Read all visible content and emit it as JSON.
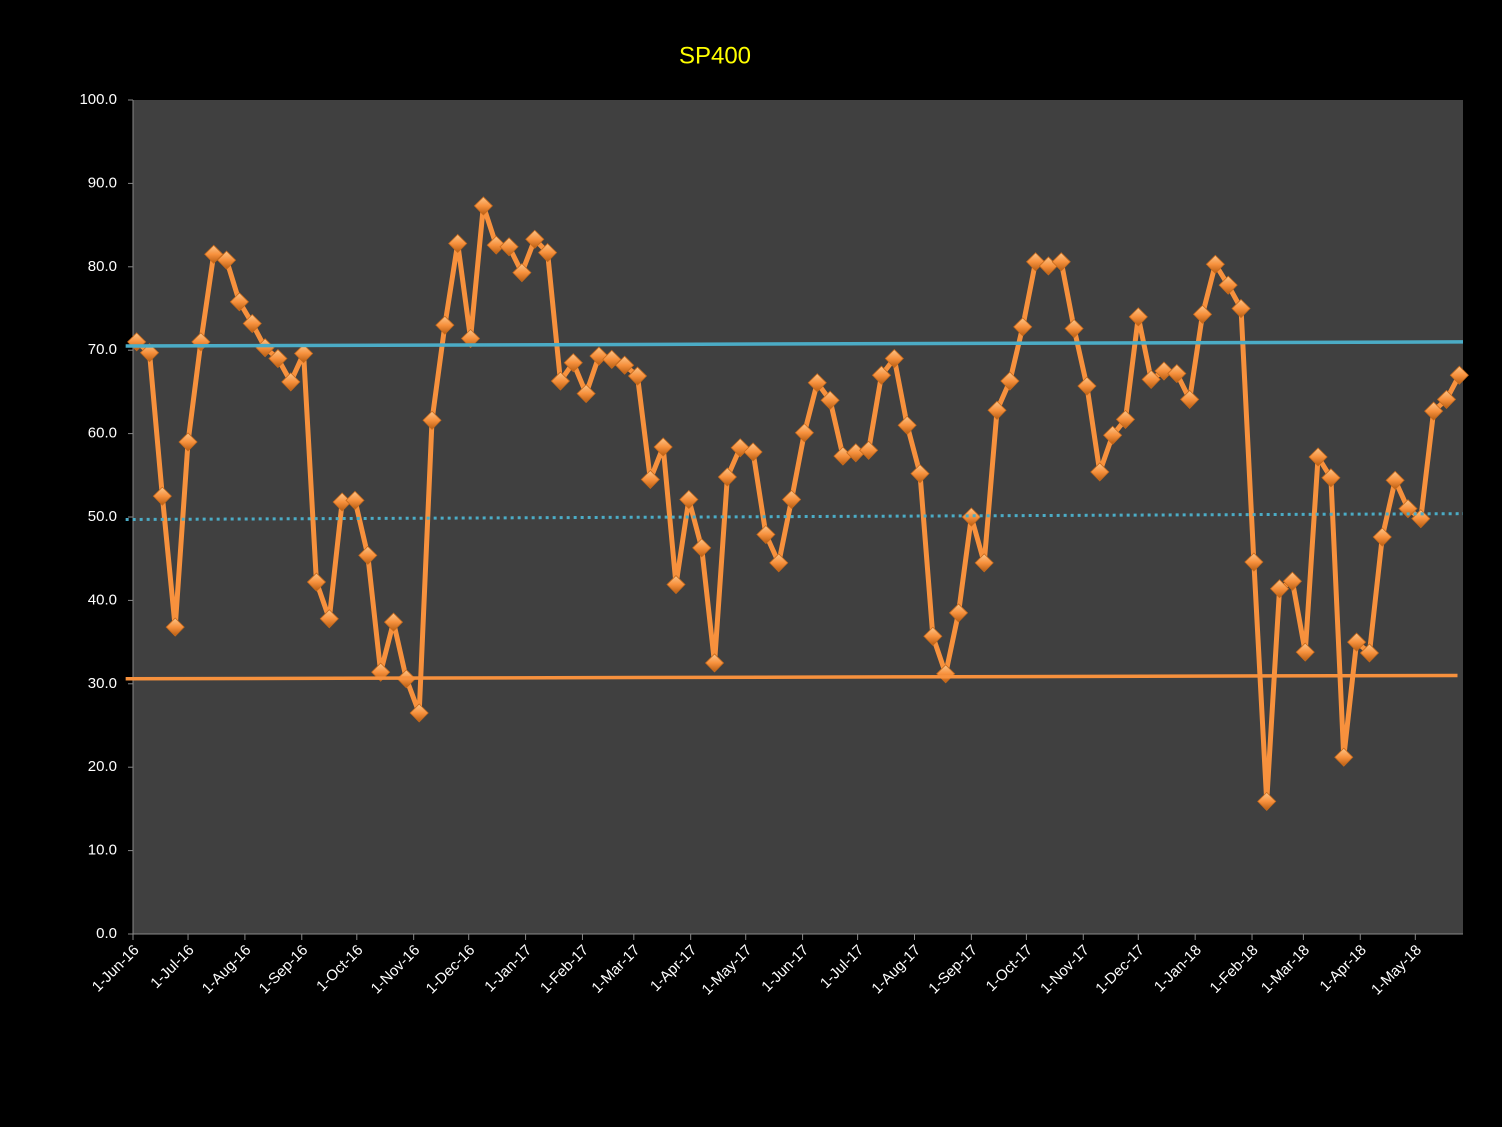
{
  "chart_data": {
    "type": "line",
    "title": "SP400",
    "x": [
      "2016-06-03",
      "2016-06-10",
      "2016-06-17",
      "2016-06-24",
      "2016-07-01",
      "2016-07-08",
      "2016-07-15",
      "2016-07-22",
      "2016-07-29",
      "2016-08-05",
      "2016-08-12",
      "2016-08-19",
      "2016-08-26",
      "2016-09-02",
      "2016-09-09",
      "2016-09-16",
      "2016-09-23",
      "2016-09-30",
      "2016-10-07",
      "2016-10-14",
      "2016-10-21",
      "2016-10-28",
      "2016-11-04",
      "2016-11-11",
      "2016-11-18",
      "2016-11-25",
      "2016-12-02",
      "2016-12-09",
      "2016-12-16",
      "2016-12-23",
      "2016-12-30",
      "2017-01-06",
      "2017-01-13",
      "2017-01-20",
      "2017-01-27",
      "2017-02-03",
      "2017-02-10",
      "2017-02-17",
      "2017-02-24",
      "2017-03-03",
      "2017-03-10",
      "2017-03-17",
      "2017-03-24",
      "2017-03-31",
      "2017-04-07",
      "2017-04-14",
      "2017-04-21",
      "2017-04-28",
      "2017-05-05",
      "2017-05-12",
      "2017-05-19",
      "2017-05-26",
      "2017-06-02",
      "2017-06-09",
      "2017-06-16",
      "2017-06-23",
      "2017-06-30",
      "2017-07-07",
      "2017-07-14",
      "2017-07-21",
      "2017-07-28",
      "2017-08-04",
      "2017-08-11",
      "2017-08-18",
      "2017-08-25",
      "2017-09-01",
      "2017-09-08",
      "2017-09-15",
      "2017-09-22",
      "2017-09-29",
      "2017-10-06",
      "2017-10-13",
      "2017-10-20",
      "2017-10-27",
      "2017-11-03",
      "2017-11-10",
      "2017-11-17",
      "2017-11-24",
      "2017-12-01",
      "2017-12-08",
      "2017-12-15",
      "2017-12-22",
      "2017-12-29",
      "2018-01-05",
      "2018-01-12",
      "2018-01-19",
      "2018-01-26",
      "2018-02-02",
      "2018-02-09",
      "2018-02-16",
      "2018-02-23",
      "2018-03-02",
      "2018-03-09",
      "2018-03-16",
      "2018-03-23",
      "2018-03-30",
      "2018-04-06",
      "2018-04-13",
      "2018-04-20",
      "2018-04-27",
      "2018-05-04",
      "2018-05-11",
      "2018-05-18",
      "2018-05-25"
    ],
    "series": [
      {
        "color": "#f7913d",
        "marker": "diamond",
        "values": [
          71.0,
          69.7,
          52.5,
          36.8,
          59.0,
          71.0,
          81.5,
          80.8,
          75.8,
          73.2,
          70.3,
          69.0,
          66.2,
          69.6,
          42.2,
          37.8,
          51.8,
          52.0,
          45.4,
          31.4,
          37.4,
          30.6,
          26.5,
          61.6,
          73.0,
          82.8,
          71.4,
          87.3,
          82.6,
          82.4,
          79.3,
          83.3,
          81.7,
          66.3,
          68.5,
          64.8,
          69.3,
          68.9,
          68.2,
          66.9,
          54.5,
          58.4,
          41.9,
          52.1,
          46.3,
          32.5,
          54.8,
          58.3,
          57.8,
          47.9,
          44.5,
          52.1,
          60.1,
          66.1,
          64.0,
          57.3,
          57.7,
          58.0,
          67.0,
          69.0,
          61.0,
          55.2,
          35.7,
          31.2,
          38.5,
          50.0,
          44.5,
          62.8,
          66.3,
          72.8,
          80.6,
          80.1,
          80.6,
          72.6,
          65.7,
          55.4,
          59.8,
          61.7,
          74.0,
          66.5,
          67.5,
          67.2,
          64.1,
          74.3,
          80.3,
          77.8,
          75.0,
          44.6,
          15.9,
          41.4,
          42.3,
          33.8,
          57.2,
          54.7,
          21.2,
          35.0,
          33.7,
          47.6,
          54.4,
          51.0,
          49.8,
          62.7,
          64.1,
          67.0
        ]
      },
      {
        "color": "#4bacc6",
        "dash": false,
        "x": [
          "2016-05-28",
          "2018-05-27"
        ],
        "values": [
          70.5,
          71.0
        ]
      },
      {
        "color": "#4bacc6",
        "dash": true,
        "x": [
          "2016-05-28",
          "2018-05-27"
        ],
        "values": [
          49.7,
          50.4
        ]
      },
      {
        "color": "#f7913d",
        "dash": false,
        "x": [
          "2016-05-28",
          "2018-05-24"
        ],
        "values": [
          30.6,
          31.0
        ]
      }
    ],
    "xlim": [
      "2016-06-01",
      "2018-05-27"
    ],
    "xticks": [
      {
        "value": "2016-06-01",
        "label": "1-Jun-16"
      },
      {
        "value": "2016-07-01",
        "label": "1-Jul-16"
      },
      {
        "value": "2016-08-01",
        "label": "1-Aug-16"
      },
      {
        "value": "2016-09-01",
        "label": "1-Sep-16"
      },
      {
        "value": "2016-10-01",
        "label": "1-Oct-16"
      },
      {
        "value": "2016-11-01",
        "label": "1-Nov-16"
      },
      {
        "value": "2016-12-01",
        "label": "1-Dec-16"
      },
      {
        "value": "2017-01-01",
        "label": "1-Jan-17"
      },
      {
        "value": "2017-02-01",
        "label": "1-Feb-17"
      },
      {
        "value": "2017-03-01",
        "label": "1-Mar-17"
      },
      {
        "value": "2017-04-01",
        "label": "1-Apr-17"
      },
      {
        "value": "2017-05-01",
        "label": "1-May-17"
      },
      {
        "value": "2017-06-01",
        "label": "1-Jun-17"
      },
      {
        "value": "2017-07-01",
        "label": "1-Jul-17"
      },
      {
        "value": "2017-08-01",
        "label": "1-Aug-17"
      },
      {
        "value": "2017-09-01",
        "label": "1-Sep-17"
      },
      {
        "value": "2017-10-01",
        "label": "1-Oct-17"
      },
      {
        "value": "2017-11-01",
        "label": "1-Nov-17"
      },
      {
        "value": "2017-12-01",
        "label": "1-Dec-17"
      },
      {
        "value": "2018-01-01",
        "label": "1-Jan-18"
      },
      {
        "value": "2018-02-01",
        "label": "1-Feb-18"
      },
      {
        "value": "2018-03-01",
        "label": "1-Mar-18"
      },
      {
        "value": "2018-04-01",
        "label": "1-Apr-18"
      },
      {
        "value": "2018-05-01",
        "label": "1-May-18"
      }
    ],
    "ylim": [
      0,
      100
    ],
    "yticks": [
      {
        "value": 0,
        "label": "0.0"
      },
      {
        "value": 10,
        "label": "10.0"
      },
      {
        "value": 20,
        "label": "20.0"
      },
      {
        "value": 30,
        "label": "30.0"
      },
      {
        "value": 40,
        "label": "40.0"
      },
      {
        "value": 50,
        "label": "50.0"
      },
      {
        "value": 60,
        "label": "60.0"
      },
      {
        "value": 70,
        "label": "70.0"
      },
      {
        "value": 80,
        "label": "80.0"
      },
      {
        "value": 90,
        "label": "90.0"
      },
      {
        "value": 100,
        "label": "100.0"
      }
    ],
    "grid": false
  }
}
